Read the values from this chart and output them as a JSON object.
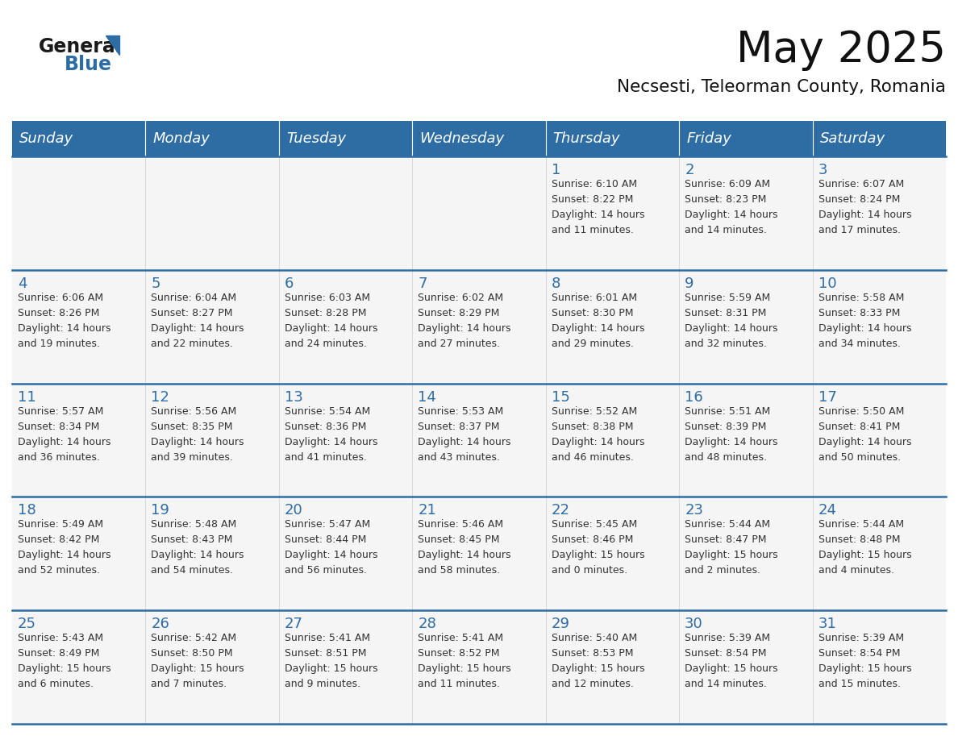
{
  "title": "May 2025",
  "subtitle": "Necsesti, Teleorman County, Romania",
  "days_of_week": [
    "Sunday",
    "Monday",
    "Tuesday",
    "Wednesday",
    "Thursday",
    "Friday",
    "Saturday"
  ],
  "header_bg": "#2e6da4",
  "header_text_color": "#ffffff",
  "cell_bg": "#f5f5f5",
  "day_number_color": "#2e6da4",
  "info_text_color": "#333333",
  "divider_color": "#2e6da4",
  "logo_general_color": "#1a1a1a",
  "logo_blue_color": "#2e6da4",
  "calendar": [
    [
      {
        "day": null,
        "info": ""
      },
      {
        "day": null,
        "info": ""
      },
      {
        "day": null,
        "info": ""
      },
      {
        "day": null,
        "info": ""
      },
      {
        "day": 1,
        "info": "Sunrise: 6:10 AM\nSunset: 8:22 PM\nDaylight: 14 hours\nand 11 minutes."
      },
      {
        "day": 2,
        "info": "Sunrise: 6:09 AM\nSunset: 8:23 PM\nDaylight: 14 hours\nand 14 minutes."
      },
      {
        "day": 3,
        "info": "Sunrise: 6:07 AM\nSunset: 8:24 PM\nDaylight: 14 hours\nand 17 minutes."
      }
    ],
    [
      {
        "day": 4,
        "info": "Sunrise: 6:06 AM\nSunset: 8:26 PM\nDaylight: 14 hours\nand 19 minutes."
      },
      {
        "day": 5,
        "info": "Sunrise: 6:04 AM\nSunset: 8:27 PM\nDaylight: 14 hours\nand 22 minutes."
      },
      {
        "day": 6,
        "info": "Sunrise: 6:03 AM\nSunset: 8:28 PM\nDaylight: 14 hours\nand 24 minutes."
      },
      {
        "day": 7,
        "info": "Sunrise: 6:02 AM\nSunset: 8:29 PM\nDaylight: 14 hours\nand 27 minutes."
      },
      {
        "day": 8,
        "info": "Sunrise: 6:01 AM\nSunset: 8:30 PM\nDaylight: 14 hours\nand 29 minutes."
      },
      {
        "day": 9,
        "info": "Sunrise: 5:59 AM\nSunset: 8:31 PM\nDaylight: 14 hours\nand 32 minutes."
      },
      {
        "day": 10,
        "info": "Sunrise: 5:58 AM\nSunset: 8:33 PM\nDaylight: 14 hours\nand 34 minutes."
      }
    ],
    [
      {
        "day": 11,
        "info": "Sunrise: 5:57 AM\nSunset: 8:34 PM\nDaylight: 14 hours\nand 36 minutes."
      },
      {
        "day": 12,
        "info": "Sunrise: 5:56 AM\nSunset: 8:35 PM\nDaylight: 14 hours\nand 39 minutes."
      },
      {
        "day": 13,
        "info": "Sunrise: 5:54 AM\nSunset: 8:36 PM\nDaylight: 14 hours\nand 41 minutes."
      },
      {
        "day": 14,
        "info": "Sunrise: 5:53 AM\nSunset: 8:37 PM\nDaylight: 14 hours\nand 43 minutes."
      },
      {
        "day": 15,
        "info": "Sunrise: 5:52 AM\nSunset: 8:38 PM\nDaylight: 14 hours\nand 46 minutes."
      },
      {
        "day": 16,
        "info": "Sunrise: 5:51 AM\nSunset: 8:39 PM\nDaylight: 14 hours\nand 48 minutes."
      },
      {
        "day": 17,
        "info": "Sunrise: 5:50 AM\nSunset: 8:41 PM\nDaylight: 14 hours\nand 50 minutes."
      }
    ],
    [
      {
        "day": 18,
        "info": "Sunrise: 5:49 AM\nSunset: 8:42 PM\nDaylight: 14 hours\nand 52 minutes."
      },
      {
        "day": 19,
        "info": "Sunrise: 5:48 AM\nSunset: 8:43 PM\nDaylight: 14 hours\nand 54 minutes."
      },
      {
        "day": 20,
        "info": "Sunrise: 5:47 AM\nSunset: 8:44 PM\nDaylight: 14 hours\nand 56 minutes."
      },
      {
        "day": 21,
        "info": "Sunrise: 5:46 AM\nSunset: 8:45 PM\nDaylight: 14 hours\nand 58 minutes."
      },
      {
        "day": 22,
        "info": "Sunrise: 5:45 AM\nSunset: 8:46 PM\nDaylight: 15 hours\nand 0 minutes."
      },
      {
        "day": 23,
        "info": "Sunrise: 5:44 AM\nSunset: 8:47 PM\nDaylight: 15 hours\nand 2 minutes."
      },
      {
        "day": 24,
        "info": "Sunrise: 5:44 AM\nSunset: 8:48 PM\nDaylight: 15 hours\nand 4 minutes."
      }
    ],
    [
      {
        "day": 25,
        "info": "Sunrise: 5:43 AM\nSunset: 8:49 PM\nDaylight: 15 hours\nand 6 minutes."
      },
      {
        "day": 26,
        "info": "Sunrise: 5:42 AM\nSunset: 8:50 PM\nDaylight: 15 hours\nand 7 minutes."
      },
      {
        "day": 27,
        "info": "Sunrise: 5:41 AM\nSunset: 8:51 PM\nDaylight: 15 hours\nand 9 minutes."
      },
      {
        "day": 28,
        "info": "Sunrise: 5:41 AM\nSunset: 8:52 PM\nDaylight: 15 hours\nand 11 minutes."
      },
      {
        "day": 29,
        "info": "Sunrise: 5:40 AM\nSunset: 8:53 PM\nDaylight: 15 hours\nand 12 minutes."
      },
      {
        "day": 30,
        "info": "Sunrise: 5:39 AM\nSunset: 8:54 PM\nDaylight: 15 hours\nand 14 minutes."
      },
      {
        "day": 31,
        "info": "Sunrise: 5:39 AM\nSunset: 8:54 PM\nDaylight: 15 hours\nand 15 minutes."
      }
    ]
  ]
}
